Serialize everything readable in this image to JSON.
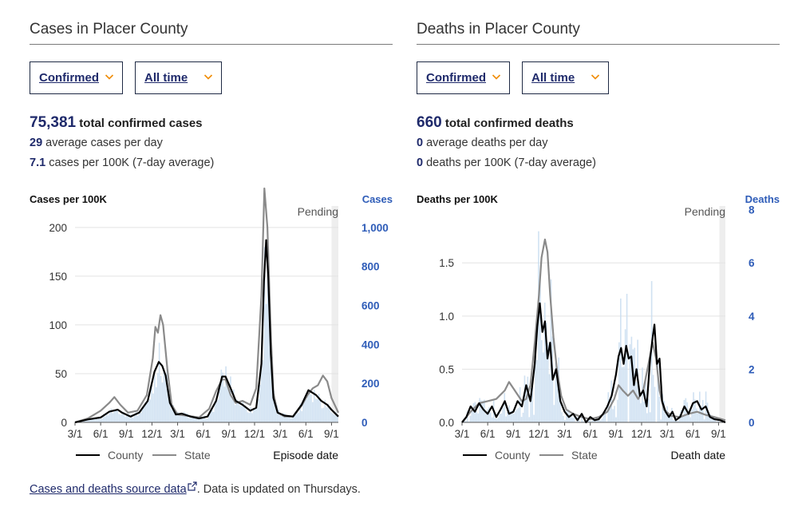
{
  "panels": [
    {
      "title": "Cases in Placer County",
      "dropdown_type": "Confirmed",
      "dropdown_range": "All time",
      "stat_total_value": "75,381",
      "stat_total_label": "total confirmed cases",
      "stat_avg_value": "29",
      "stat_avg_label": "average cases per day",
      "stat_rate_value": "7.1",
      "stat_rate_label": "cases per 100K (7-day average)"
    },
    {
      "title": "Deaths in Placer County",
      "dropdown_type": "Confirmed",
      "dropdown_range": "All time",
      "stat_total_value": "660",
      "stat_total_label": "total confirmed deaths",
      "stat_avg_value": "0",
      "stat_avg_label": "average deaths per day",
      "stat_rate_value": "0",
      "stat_rate_label": "deaths per 100K (7-day average)"
    }
  ],
  "footer": {
    "link_text": "Cases and deaths source data",
    "suffix": ". Data is updated on Thursdays."
  },
  "colors": {
    "county": "#000000",
    "state": "#8a8a8a",
    "bars": "#c9ddf0",
    "pending": "#eeeeee",
    "right_axis": "#2e5cb8",
    "accent": "#f08c00"
  },
  "chart_data": [
    {
      "type": "line",
      "ylabel": "Cases per 100K",
      "y2label": "Cases",
      "xlabel": "Episode date",
      "pending_label": "Pending",
      "ylim": [
        0,
        240
      ],
      "y2lim": [
        0,
        1200
      ],
      "y_ticks": [
        0,
        50,
        100,
        150,
        200
      ],
      "y2_ticks": [
        0,
        200,
        400,
        600,
        800,
        "1,000"
      ],
      "x_tick_labels": [
        "3/1",
        "6/1",
        "9/1",
        "12/1",
        "3/1",
        "6/1",
        "9/1",
        "12/1",
        "3/1",
        "6/1",
        "9/1"
      ],
      "x_tick_months": [
        0,
        3,
        6,
        9,
        12,
        15,
        18,
        21,
        24,
        27,
        30
      ],
      "x_range_months": [
        0,
        30.8
      ],
      "pending_from_month": 30.0,
      "legend": [
        "County",
        "State"
      ],
      "series": [
        {
          "name": "County",
          "points": [
            [
              0,
              0
            ],
            [
              1.5,
              3
            ],
            [
              3,
              5
            ],
            [
              4,
              11
            ],
            [
              5,
              13
            ],
            [
              5.5,
              10
            ],
            [
              6.5,
              6
            ],
            [
              7.5,
              10
            ],
            [
              8.5,
              22
            ],
            [
              9.3,
              52
            ],
            [
              9.8,
              62
            ],
            [
              10.2,
              58
            ],
            [
              10.6,
              48
            ],
            [
              11.1,
              20
            ],
            [
              11.8,
              8
            ],
            [
              12.5,
              9
            ],
            [
              13.5,
              6
            ],
            [
              14.5,
              4
            ],
            [
              15.5,
              6
            ],
            [
              16.5,
              22
            ],
            [
              17.2,
              47
            ],
            [
              17.6,
              47
            ],
            [
              18.2,
              35
            ],
            [
              18.8,
              22
            ],
            [
              19.6,
              18
            ],
            [
              20.5,
              12
            ],
            [
              21.2,
              15
            ],
            [
              21.8,
              60
            ],
            [
              22.1,
              145
            ],
            [
              22.35,
              187
            ],
            [
              22.6,
              150
            ],
            [
              22.9,
              70
            ],
            [
              23.2,
              25
            ],
            [
              23.7,
              10
            ],
            [
              24.5,
              7
            ],
            [
              25.5,
              6
            ],
            [
              26.5,
              18
            ],
            [
              27.3,
              33
            ],
            [
              28.2,
              28
            ],
            [
              28.8,
              22
            ],
            [
              29.5,
              18
            ],
            [
              30,
              13
            ],
            [
              30.8,
              6
            ]
          ]
        },
        {
          "name": "State",
          "points": [
            [
              0,
              0
            ],
            [
              1.5,
              4
            ],
            [
              3,
              12
            ],
            [
              4,
              20
            ],
            [
              4.6,
              26
            ],
            [
              5.3,
              18
            ],
            [
              6.2,
              10
            ],
            [
              7.3,
              12
            ],
            [
              8.4,
              28
            ],
            [
              9.1,
              66
            ],
            [
              9.4,
              98
            ],
            [
              9.7,
              92
            ],
            [
              10.0,
              110
            ],
            [
              10.3,
              100
            ],
            [
              10.8,
              55
            ],
            [
              11.3,
              18
            ],
            [
              12,
              8
            ],
            [
              13,
              7
            ],
            [
              14.5,
              5
            ],
            [
              15.7,
              14
            ],
            [
              16.5,
              32
            ],
            [
              17.2,
              44
            ],
            [
              17.6,
              44
            ],
            [
              18.2,
              28
            ],
            [
              18.8,
              20
            ],
            [
              19.6,
              22
            ],
            [
              20.5,
              18
            ],
            [
              21.2,
              35
            ],
            [
              21.8,
              130
            ],
            [
              22.15,
              240
            ],
            [
              22.5,
              200
            ],
            [
              22.9,
              90
            ],
            [
              23.2,
              30
            ],
            [
              23.7,
              10
            ],
            [
              24.5,
              6
            ],
            [
              25.5,
              6
            ],
            [
              26.5,
              17
            ],
            [
              27.2,
              28
            ],
            [
              27.8,
              35
            ],
            [
              28.4,
              38
            ],
            [
              29.0,
              48
            ],
            [
              29.5,
              42
            ],
            [
              30,
              25
            ],
            [
              30.8,
              10
            ]
          ]
        }
      ]
    },
    {
      "type": "line",
      "ylabel": "Deaths per 100K",
      "y2label": "Deaths",
      "xlabel": "Death date",
      "pending_label": "Pending",
      "ylim": [
        0,
        2.2
      ],
      "y2lim": [
        0,
        8.8
      ],
      "y_ticks": [
        "0.0",
        "0.5",
        "1.0",
        "1.5"
      ],
      "y2_ticks": [
        0,
        2,
        4,
        6,
        8
      ],
      "x_tick_labels": [
        "3/1",
        "6/1",
        "9/1",
        "12/1",
        "3/1",
        "6/1",
        "9/1",
        "12/1",
        "3/1",
        "6/1",
        "9/1"
      ],
      "x_tick_months": [
        0,
        3,
        6,
        9,
        12,
        15,
        18,
        21,
        24,
        27,
        30
      ],
      "x_range_months": [
        0,
        30.8
      ],
      "pending_from_month": 30.1,
      "legend": [
        "County",
        "State"
      ],
      "series": [
        {
          "name": "County",
          "points": [
            [
              0,
              0
            ],
            [
              0.5,
              0.05
            ],
            [
              1,
              0.15
            ],
            [
              1.5,
              0.1
            ],
            [
              2,
              0.18
            ],
            [
              2.5,
              0.12
            ],
            [
              3,
              0.08
            ],
            [
              3.5,
              0.15
            ],
            [
              4,
              0.05
            ],
            [
              4.5,
              0.12
            ],
            [
              5,
              0.2
            ],
            [
              5.5,
              0.08
            ],
            [
              6,
              0.1
            ],
            [
              6.5,
              0.2
            ],
            [
              7,
              0.15
            ],
            [
              7.5,
              0.35
            ],
            [
              8,
              0.2
            ],
            [
              8.5,
              0.55
            ],
            [
              8.8,
              0.9
            ],
            [
              9.1,
              1.12
            ],
            [
              9.4,
              0.85
            ],
            [
              9.7,
              0.95
            ],
            [
              10,
              0.6
            ],
            [
              10.3,
              0.75
            ],
            [
              10.6,
              0.4
            ],
            [
              11,
              0.5
            ],
            [
              11.5,
              0.2
            ],
            [
              12,
              0.1
            ],
            [
              12.5,
              0.05
            ],
            [
              13,
              0.08
            ],
            [
              13.5,
              0.02
            ],
            [
              14,
              0.08
            ],
            [
              14.5,
              0.0
            ],
            [
              15,
              0.05
            ],
            [
              15.5,
              0.02
            ],
            [
              16,
              0.03
            ],
            [
              16.5,
              0.08
            ],
            [
              17,
              0.15
            ],
            [
              17.5,
              0.25
            ],
            [
              18,
              0.45
            ],
            [
              18.3,
              0.62
            ],
            [
              18.6,
              0.7
            ],
            [
              18.9,
              0.55
            ],
            [
              19.2,
              0.72
            ],
            [
              19.5,
              0.6
            ],
            [
              19.8,
              0.62
            ],
            [
              20.1,
              0.35
            ],
            [
              20.4,
              0.5
            ],
            [
              20.8,
              0.25
            ],
            [
              21.2,
              0.3
            ],
            [
              21.6,
              0.15
            ],
            [
              22,
              0.6
            ],
            [
              22.3,
              0.8
            ],
            [
              22.5,
              0.92
            ],
            [
              22.8,
              0.55
            ],
            [
              23.1,
              0.6
            ],
            [
              23.4,
              0.2
            ],
            [
              23.8,
              0.1
            ],
            [
              24.2,
              0.05
            ],
            [
              24.6,
              0.1
            ],
            [
              25,
              0.02
            ],
            [
              25.5,
              0.05
            ],
            [
              26,
              0.15
            ],
            [
              26.5,
              0.08
            ],
            [
              27,
              0.18
            ],
            [
              27.5,
              0.2
            ],
            [
              28,
              0.12
            ],
            [
              28.5,
              0.15
            ],
            [
              29,
              0.05
            ],
            [
              29.5,
              0.03
            ],
            [
              30.2,
              0.02
            ],
            [
              30.8,
              0.0
            ]
          ]
        },
        {
          "name": "State",
          "points": [
            [
              0,
              0
            ],
            [
              1,
              0.1
            ],
            [
              2,
              0.18
            ],
            [
              3,
              0.2
            ],
            [
              4,
              0.22
            ],
            [
              5,
              0.3
            ],
            [
              5.5,
              0.38
            ],
            [
              6,
              0.32
            ],
            [
              7,
              0.2
            ],
            [
              7.5,
              0.22
            ],
            [
              8,
              0.35
            ],
            [
              8.5,
              0.75
            ],
            [
              9,
              1.2
            ],
            [
              9.3,
              1.55
            ],
            [
              9.7,
              1.72
            ],
            [
              10.0,
              1.6
            ],
            [
              10.3,
              1.2
            ],
            [
              10.7,
              0.8
            ],
            [
              11.1,
              0.5
            ],
            [
              11.6,
              0.25
            ],
            [
              12.2,
              0.12
            ],
            [
              13,
              0.08
            ],
            [
              14,
              0.05
            ],
            [
              15,
              0.03
            ],
            [
              16,
              0.05
            ],
            [
              17,
              0.1
            ],
            [
              17.8,
              0.22
            ],
            [
              18.3,
              0.35
            ],
            [
              18.8,
              0.3
            ],
            [
              19.4,
              0.25
            ],
            [
              20,
              0.3
            ],
            [
              20.6,
              0.22
            ],
            [
              21.2,
              0.3
            ],
            [
              21.8,
              0.55
            ],
            [
              22.3,
              0.75
            ],
            [
              22.7,
              0.6
            ],
            [
              23.1,
              0.3
            ],
            [
              23.6,
              0.12
            ],
            [
              24.5,
              0.06
            ],
            [
              25.5,
              0.05
            ],
            [
              26.5,
              0.08
            ],
            [
              27.5,
              0.1
            ],
            [
              28.5,
              0.07
            ],
            [
              29.5,
              0.05
            ],
            [
              30.8,
              0.02
            ]
          ]
        }
      ]
    }
  ]
}
